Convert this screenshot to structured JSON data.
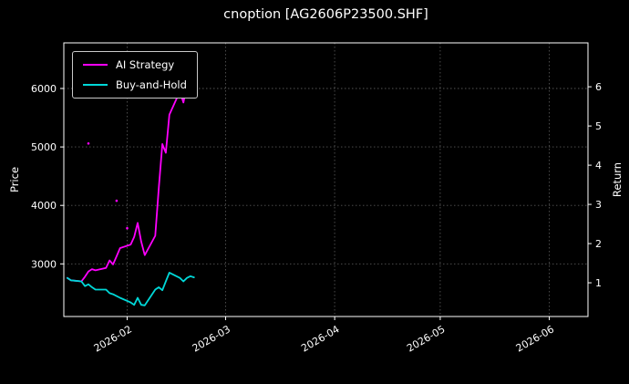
{
  "chart_data": {
    "type": "line",
    "title": "cnoption [AG2606P23500.SHF]",
    "colors": {
      "background": "#000000",
      "foreground": "#ffffff",
      "grid": "#555555"
    },
    "price_axis": {
      "label": "Price",
      "min": 2100,
      "max": 6780,
      "ticks": [
        3000,
        4000,
        5000,
        6000
      ]
    },
    "return_axis": {
      "label": "Return",
      "min": 0.14,
      "max": 7.12,
      "ticks": [
        1,
        2,
        3,
        4,
        5,
        6
      ]
    },
    "time_axis": {
      "start": "2026-01-14",
      "end": "2026-06-12",
      "ticks": [
        {
          "date": "2026-02-01",
          "label": "2026-02"
        },
        {
          "date": "2026-03-01",
          "label": "2026-03"
        },
        {
          "date": "2026-04-01",
          "label": "2026-04"
        },
        {
          "date": "2026-05-01",
          "label": "2026-05"
        },
        {
          "date": "2026-06-01",
          "label": "2026-06"
        }
      ]
    },
    "legend": {
      "position": "upper-left"
    },
    "series": [
      {
        "name": "AI Strategy",
        "color": "#ff00ff",
        "points": [
          [
            "2026-01-15",
            2760
          ],
          [
            "2026-01-16",
            2720
          ],
          [
            "2026-01-19",
            2700
          ],
          [
            "2026-01-20",
            2780
          ],
          [
            "2026-01-21",
            2870
          ],
          [
            "2026-01-22",
            2910
          ],
          [
            "2026-01-23",
            2890
          ],
          [
            "2026-01-26",
            2930
          ],
          [
            "2026-01-27",
            3060
          ],
          [
            "2026-01-28",
            2990
          ],
          [
            "2026-01-29",
            3130
          ],
          [
            "2026-01-30",
            3270
          ],
          [
            "2026-02-02",
            3330
          ],
          [
            "2026-02-03",
            3460
          ],
          [
            "2026-02-04",
            3700
          ],
          [
            "2026-02-05",
            3380
          ],
          [
            "2026-02-06",
            3150
          ],
          [
            "2026-02-09",
            3480
          ],
          [
            "2026-02-10",
            4300
          ],
          [
            "2026-02-11",
            5050
          ],
          [
            "2026-02-12",
            4900
          ],
          [
            "2026-02-13",
            5550
          ],
          [
            "2026-02-16",
            5950
          ],
          [
            "2026-02-17",
            5760
          ],
          [
            "2026-02-18",
            6080
          ],
          [
            "2026-02-19",
            5980
          ]
        ]
      },
      {
        "name": "Buy-and-Hold",
        "color": "#00d8d8",
        "points": [
          [
            "2026-01-15",
            2760
          ],
          [
            "2026-01-16",
            2720
          ],
          [
            "2026-01-19",
            2700
          ],
          [
            "2026-01-20",
            2620
          ],
          [
            "2026-01-21",
            2650
          ],
          [
            "2026-01-22",
            2600
          ],
          [
            "2026-01-23",
            2560
          ],
          [
            "2026-01-26",
            2560
          ],
          [
            "2026-01-27",
            2500
          ],
          [
            "2026-01-28",
            2480
          ],
          [
            "2026-01-29",
            2450
          ],
          [
            "2026-01-30",
            2420
          ],
          [
            "2026-02-02",
            2340
          ],
          [
            "2026-02-03",
            2300
          ],
          [
            "2026-02-04",
            2420
          ],
          [
            "2026-02-05",
            2300
          ],
          [
            "2026-02-06",
            2290
          ],
          [
            "2026-02-09",
            2560
          ],
          [
            "2026-02-10",
            2600
          ],
          [
            "2026-02-11",
            2550
          ],
          [
            "2026-02-12",
            2700
          ],
          [
            "2026-02-13",
            2850
          ],
          [
            "2026-02-16",
            2760
          ],
          [
            "2026-02-17",
            2700
          ],
          [
            "2026-02-18",
            2760
          ],
          [
            "2026-02-19",
            2790
          ],
          [
            "2026-02-20",
            2770
          ]
        ]
      }
    ],
    "stray_points": [
      {
        "date": "2026-01-21",
        "price": 5060,
        "color": "#ff00ff"
      },
      {
        "date": "2026-01-29",
        "price": 4080,
        "color": "#ff00ff"
      },
      {
        "date": "2026-02-01",
        "price": 3610,
        "color": "#ff00ff"
      }
    ]
  }
}
